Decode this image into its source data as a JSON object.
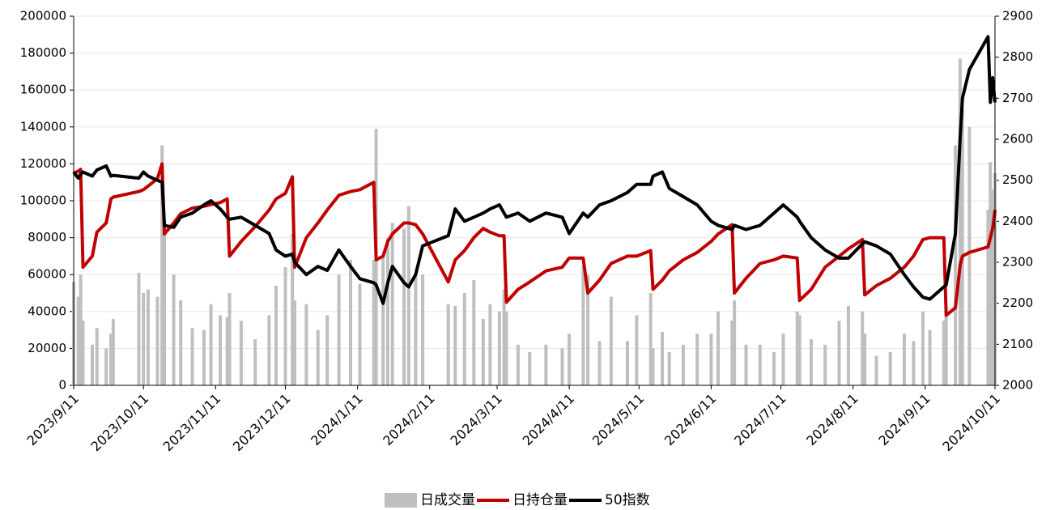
{
  "chart_data": {
    "type": "combo",
    "x": [
      "2023/9/11",
      "2023/9/13",
      "2023/9/14",
      "2023/9/15",
      "2023/9/19",
      "2023/9/21",
      "2023/9/25",
      "2023/9/27",
      "2023/9/28",
      "2023/10/9",
      "2023/10/11",
      "2023/10/13",
      "2023/10/17",
      "2023/10/19",
      "2023/10/20",
      "2023/10/24",
      "2023/10/27",
      "2023/11/1",
      "2023/11/6",
      "2023/11/9",
      "2023/11/13",
      "2023/11/16",
      "2023/11/17",
      "2023/11/22",
      "2023/11/28",
      "2023/12/4",
      "2023/12/7",
      "2023/12/11",
      "2023/12/14",
      "2023/12/15",
      "2023/12/20",
      "2023/12/25",
      "2023/12/29",
      "2024/1/3",
      "2024/1/8",
      "2024/1/12",
      "2024/1/18",
      "2024/1/19",
      "2024/1/22",
      "2024/1/24",
      "2024/1/26",
      "2024/1/31",
      "2024/2/2",
      "2024/2/5",
      "2024/2/8",
      "2024/2/19",
      "2024/2/22",
      "2024/2/26",
      "2024/3/1",
      "2024/3/5",
      "2024/3/8",
      "2024/3/12",
      "2024/3/14",
      "2024/3/15",
      "2024/3/20",
      "2024/3/25",
      "2024/4/1",
      "2024/4/8",
      "2024/4/11",
      "2024/4/17",
      "2024/4/19",
      "2024/4/24",
      "2024/4/29",
      "2024/5/6",
      "2024/5/10",
      "2024/5/16",
      "2024/5/17",
      "2024/5/21",
      "2024/5/24",
      "2024/5/30",
      "2024/6/5",
      "2024/6/11",
      "2024/6/14",
      "2024/6/20",
      "2024/6/21",
      "2024/6/26",
      "2024/7/2",
      "2024/7/8",
      "2024/7/12",
      "2024/7/18",
      "2024/7/19",
      "2024/7/24",
      "2024/7/30",
      "2024/8/5",
      "2024/8/9",
      "2024/8/15",
      "2024/8/16",
      "2024/8/21",
      "2024/8/27",
      "2024/9/2",
      "2024/9/6",
      "2024/9/10",
      "2024/9/13",
      "2024/9/19",
      "2024/9/20",
      "2024/9/24",
      "2024/9/26",
      "2024/9/27",
      "2024/9/30",
      "2024/10/8",
      "2024/10/9",
      "2024/10/10",
      "2024/10/11"
    ],
    "series": [
      {
        "name": "日成交量",
        "type": "bar",
        "color": "#bfbfbf",
        "values": [
          56000,
          48000,
          60000,
          35000,
          22000,
          31000,
          20000,
          28000,
          36000,
          61000,
          50000,
          52000,
          48000,
          130000,
          88000,
          60000,
          46000,
          31000,
          30000,
          44000,
          38000,
          37000,
          50000,
          35000,
          25000,
          38000,
          54000,
          64000,
          82000,
          46000,
          44000,
          30000,
          38000,
          60000,
          68000,
          55000,
          68000,
          139000,
          70000,
          80000,
          88000,
          85000,
          97000,
          61000,
          60000,
          44000,
          43000,
          50000,
          57000,
          36000,
          44000,
          40000,
          52000,
          40000,
          22000,
          18000,
          22000,
          20000,
          28000,
          65000,
          60000,
          24000,
          48000,
          24000,
          38000,
          50000,
          20000,
          29000,
          18000,
          22000,
          28000,
          28000,
          40000,
          35000,
          46000,
          22000,
          22000,
          18000,
          28000,
          40000,
          38000,
          25000,
          22000,
          35000,
          43000,
          40000,
          28000,
          16000,
          18000,
          28000,
          24000,
          40000,
          30000,
          35000,
          40000,
          130000,
          177000,
          150000,
          140000,
          95000,
          121000,
          106000,
          115000
        ]
      },
      {
        "name": "日持仓量",
        "type": "line",
        "color": "#c00000",
        "values": [
          115000,
          116000,
          117000,
          64000,
          70000,
          83000,
          88000,
          101000,
          102000,
          105000,
          106000,
          108000,
          112000,
          120000,
          82000,
          88000,
          93000,
          96000,
          97000,
          98000,
          99000,
          101000,
          70000,
          78000,
          86000,
          95000,
          101000,
          104000,
          113000,
          64000,
          80000,
          88000,
          95000,
          103000,
          105000,
          106000,
          110000,
          68000,
          70000,
          78000,
          82000,
          88000,
          88000,
          87000,
          82000,
          56000,
          68000,
          73000,
          80000,
          85000,
          83000,
          81000,
          81000,
          45000,
          52000,
          56000,
          62000,
          64000,
          69000,
          69000,
          50000,
          57000,
          66000,
          70000,
          70000,
          73000,
          52000,
          57000,
          62000,
          68000,
          72000,
          78000,
          82000,
          87000,
          50000,
          58000,
          66000,
          68000,
          70000,
          69000,
          46000,
          52000,
          64000,
          70000,
          74000,
          79000,
          49000,
          54000,
          58000,
          64000,
          70000,
          79000,
          80000,
          80000,
          38000,
          42000,
          65000,
          70000,
          72000,
          75000,
          80000,
          85000,
          95000
        ]
      },
      {
        "name": "50指数",
        "type": "line",
        "axis": "y2",
        "color": "#000000",
        "values": [
          2520,
          2505,
          2515,
          2520,
          2510,
          2525,
          2535,
          2510,
          2512,
          2505,
          2520,
          2510,
          2500,
          2495,
          2390,
          2385,
          2410,
          2420,
          2440,
          2450,
          2430,
          2410,
          2405,
          2410,
          2390,
          2370,
          2330,
          2315,
          2320,
          2300,
          2270,
          2290,
          2280,
          2330,
          2290,
          2260,
          2250,
          2245,
          2200,
          2250,
          2290,
          2250,
          2240,
          2270,
          2340,
          2365,
          2430,
          2400,
          2410,
          2420,
          2430,
          2440,
          2420,
          2410,
          2420,
          2400,
          2420,
          2410,
          2370,
          2420,
          2410,
          2440,
          2450,
          2470,
          2490,
          2490,
          2510,
          2520,
          2480,
          2460,
          2440,
          2400,
          2390,
          2380,
          2390,
          2380,
          2390,
          2420,
          2440,
          2410,
          2400,
          2360,
          2330,
          2310,
          2310,
          2345,
          2350,
          2340,
          2320,
          2270,
          2240,
          2215,
          2210,
          2240,
          2245,
          2370,
          2600,
          2700,
          2770,
          2850,
          2690,
          2750,
          2690
        ]
      }
    ],
    "xlim": [
      "2023/9/11",
      "2024/10/11"
    ],
    "xticks": [
      "2023/9/11",
      "2023/10/11",
      "2023/11/11",
      "2023/12/11",
      "2024/1/11",
      "2024/2/11",
      "2024/3/11",
      "2024/4/11",
      "2024/5/11",
      "2024/6/11",
      "2024/7/11",
      "2024/8/11",
      "2024/9/11",
      "2024/10/11"
    ],
    "ylim": [
      0,
      200000
    ],
    "yticks": [
      0,
      20000,
      40000,
      60000,
      80000,
      100000,
      120000,
      140000,
      160000,
      180000,
      200000
    ],
    "y2lim": [
      2000,
      2900
    ],
    "y2ticks": [
      2000,
      2100,
      2200,
      2300,
      2400,
      2500,
      2600,
      2700,
      2800,
      2900
    ],
    "grid": true,
    "legend": "bottom"
  }
}
